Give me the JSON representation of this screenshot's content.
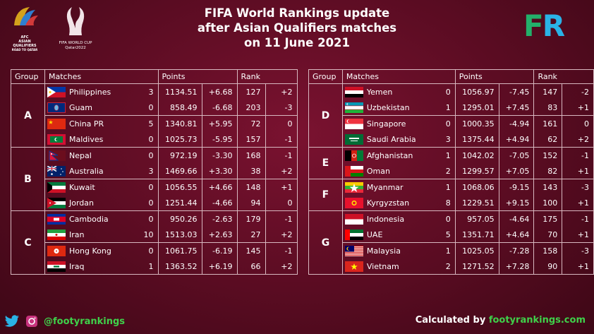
{
  "title": {
    "line1": "FIFA World Rankings update",
    "line2": "after Asian Qualifiers matches",
    "line3": "on 11 June 2021"
  },
  "logos": {
    "afc_lines": [
      "AFC",
      "ASIAN",
      "QUALIFIERS",
      "ROAD TO QATAR"
    ],
    "wc_lines": [
      "FIFA WORLD CUP",
      "Qatar2022"
    ],
    "brand": [
      "F",
      "R"
    ]
  },
  "headers": {
    "group": "Group",
    "matches": "Matches",
    "points": "Points",
    "rank": "Rank"
  },
  "left_groups": [
    {
      "group": "A",
      "rows": [
        {
          "team": "Philippines",
          "flag": "ph",
          "score": "3",
          "points": "1134.51",
          "pchange": "+6.68",
          "rank": "127",
          "rchange": "+2"
        },
        {
          "team": "Guam",
          "flag": "gu",
          "score": "0",
          "points": "858.49",
          "pchange": "-6.68",
          "rank": "203",
          "rchange": "-3"
        },
        {
          "team": "China PR",
          "flag": "cn",
          "score": "5",
          "points": "1340.81",
          "pchange": "+5.95",
          "rank": "72",
          "rchange": "0"
        },
        {
          "team": "Maldives",
          "flag": "mv",
          "score": "0",
          "points": "1025.73",
          "pchange": "-5.95",
          "rank": "157",
          "rchange": "-1"
        }
      ]
    },
    {
      "group": "B",
      "rows": [
        {
          "team": "Nepal",
          "flag": "np",
          "score": "0",
          "points": "972.19",
          "pchange": "-3.30",
          "rank": "168",
          "rchange": "-1"
        },
        {
          "team": "Australia",
          "flag": "au",
          "score": "3",
          "points": "1469.66",
          "pchange": "+3.30",
          "rank": "38",
          "rchange": "+2"
        },
        {
          "team": "Kuwait",
          "flag": "kw",
          "score": "0",
          "points": "1056.55",
          "pchange": "+4.66",
          "rank": "148",
          "rchange": "+1"
        },
        {
          "team": "Jordan",
          "flag": "jo",
          "score": "0",
          "points": "1251.44",
          "pchange": "-4.66",
          "rank": "94",
          "rchange": "0"
        }
      ]
    },
    {
      "group": "C",
      "rows": [
        {
          "team": "Cambodia",
          "flag": "kh",
          "score": "0",
          "points": "950.26",
          "pchange": "-2.63",
          "rank": "179",
          "rchange": "-1"
        },
        {
          "team": "Iran",
          "flag": "ir",
          "score": "10",
          "points": "1513.03",
          "pchange": "+2.63",
          "rank": "27",
          "rchange": "+2"
        },
        {
          "team": "Hong Kong",
          "flag": "hk",
          "score": "0",
          "points": "1061.75",
          "pchange": "-6.19",
          "rank": "145",
          "rchange": "-1"
        },
        {
          "team": "Iraq",
          "flag": "iq",
          "score": "1",
          "points": "1363.52",
          "pchange": "+6.19",
          "rank": "66",
          "rchange": "+2"
        }
      ]
    }
  ],
  "right_groups": [
    {
      "group": "D",
      "rows": [
        {
          "team": "Yemen",
          "flag": "ye",
          "score": "0",
          "points": "1056.97",
          "pchange": "-7.45",
          "rank": "147",
          "rchange": "-2"
        },
        {
          "team": "Uzbekistan",
          "flag": "uz",
          "score": "1",
          "points": "1295.01",
          "pchange": "+7.45",
          "rank": "83",
          "rchange": "+1"
        },
        {
          "team": "Singapore",
          "flag": "sg",
          "score": "0",
          "points": "1000.35",
          "pchange": "-4.94",
          "rank": "161",
          "rchange": "0"
        },
        {
          "team": "Saudi Arabia",
          "flag": "sa",
          "score": "3",
          "points": "1375.44",
          "pchange": "+4.94",
          "rank": "62",
          "rchange": "+2"
        }
      ]
    },
    {
      "group": "E",
      "rows": [
        {
          "team": "Afghanistan",
          "flag": "af",
          "score": "1",
          "points": "1042.02",
          "pchange": "-7.05",
          "rank": "152",
          "rchange": "-1"
        },
        {
          "team": "Oman",
          "flag": "om",
          "score": "2",
          "points": "1299.57",
          "pchange": "+7.05",
          "rank": "82",
          "rchange": "+1"
        }
      ]
    },
    {
      "group": "F",
      "rows": [
        {
          "team": "Myanmar",
          "flag": "mm",
          "score": "1",
          "points": "1068.06",
          "pchange": "-9.15",
          "rank": "143",
          "rchange": "-3"
        },
        {
          "team": "Kyrgyzstan",
          "flag": "kg",
          "score": "8",
          "points": "1229.51",
          "pchange": "+9.15",
          "rank": "100",
          "rchange": "+1"
        }
      ]
    },
    {
      "group": "G",
      "rows": [
        {
          "team": "Indonesia",
          "flag": "id",
          "score": "0",
          "points": "957.05",
          "pchange": "-4.64",
          "rank": "175",
          "rchange": "-1"
        },
        {
          "team": "UAE",
          "flag": "ae",
          "score": "5",
          "points": "1351.71",
          "pchange": "+4.64",
          "rank": "70",
          "rchange": "+1"
        },
        {
          "team": "Malaysia",
          "flag": "my",
          "score": "1",
          "points": "1025.05",
          "pchange": "-7.28",
          "rank": "158",
          "rchange": "-3"
        },
        {
          "team": "Vietnam",
          "flag": "vn",
          "score": "2",
          "points": "1271.52",
          "pchange": "+7.28",
          "rank": "90",
          "rchange": "+1"
        }
      ]
    }
  ],
  "footer": {
    "handle": "@footyrankings",
    "calc_prefix": "Calculated by ",
    "calc_site": "footyrankings.com"
  },
  "colors": {
    "accent_green": "#3fd14a",
    "brand_green": "#23b06a",
    "brand_blue": "#2ab3e6"
  }
}
